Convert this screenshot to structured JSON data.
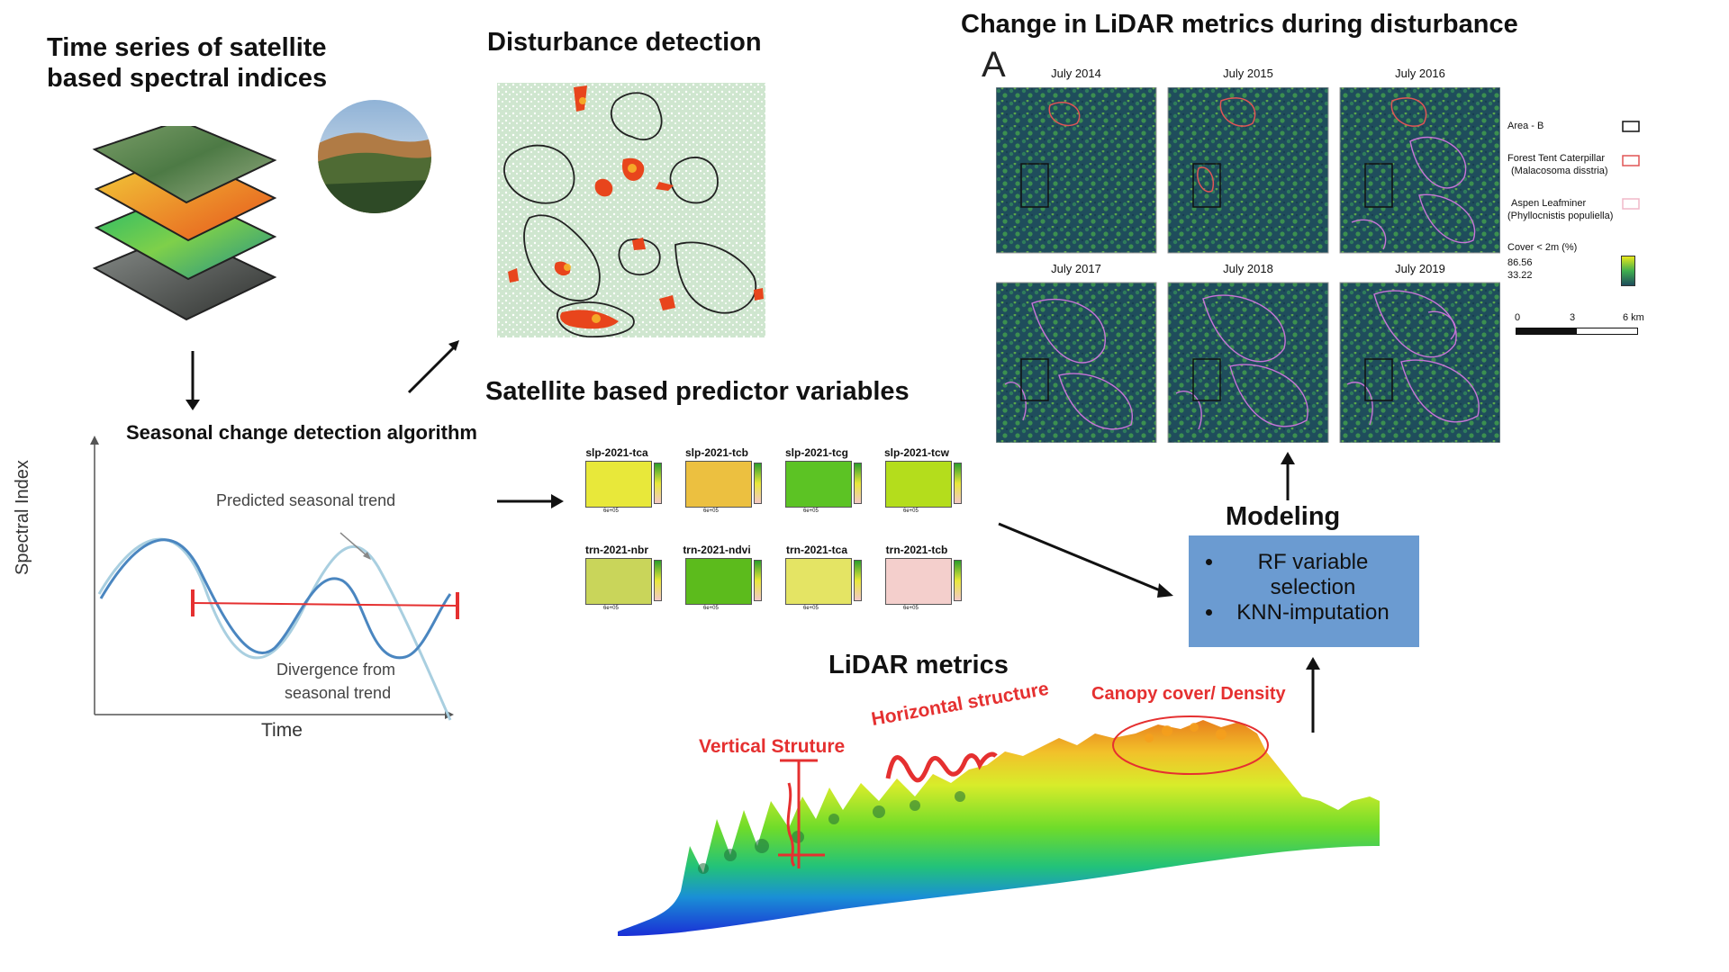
{
  "titles": {
    "time_series": "Time series of satellite based  spectral indices",
    "disturbance": "Disturbance detection",
    "change_lidar": "Change in LiDAR metrics during disturbance",
    "seasonal": "Seasonal change detection algorithm",
    "predictors": "Satellite based predictor variables",
    "modeling": "Modeling",
    "lidar": "LiDAR metrics"
  },
  "seasonal_chart": {
    "ylabel": "Spectral Index",
    "xlabel": "Time",
    "annotation_trend": "Predicted seasonal trend",
    "annotation_divergence_1": "Divergence from",
    "annotation_divergence_2": "seasonal trend"
  },
  "lidar_panels": {
    "panel_letter": "A",
    "years": [
      "July 2014",
      "July 2015",
      "July 2016",
      "July 2017",
      "July 2018",
      "July 2019"
    ],
    "legend": {
      "area": "Area - B",
      "ftc_1": "Forest Tent Caterpillar",
      "ftc_2": "(Malacosoma disstria)",
      "alm_1": "Aspen Leafminer",
      "alm_2": "(Phyllocnistis populiella)",
      "cover": "Cover < 2m (%)",
      "cover_max": "86.56",
      "cover_min": "33.22",
      "scale": [
        "0",
        "3",
        "6 km"
      ]
    }
  },
  "predictors": {
    "labels": [
      "slp-2021-tca",
      "slp-2021-tcb",
      "slp-2021-tcg",
      "slp-2021-tcw",
      "trn-2021-nbr",
      "trn-2021-ndvi",
      "trn-2021-tca",
      "trn-2021-tcb"
    ],
    "fills": [
      "#e8e83a",
      "#ecc040",
      "#5cc324",
      "#b4dd1c",
      "#c9d55a",
      "#5cbb1c",
      "#e4e464",
      "#f4cfcc"
    ],
    "axis_tick": "6e+05"
  },
  "modeling": {
    "items": [
      "RF variable selection",
      "KNN-imputation"
    ]
  },
  "lidar_metrics": {
    "vertical": "Vertical Struture",
    "horizontal": "Horizontal structure",
    "canopy": "Canopy cover/ Density"
  },
  "colors": {
    "accent_red": "#e53030",
    "model_box": "#6b9bd1",
    "panel_bg": "#1d4a5a",
    "outline_pink": "#c874d8"
  }
}
